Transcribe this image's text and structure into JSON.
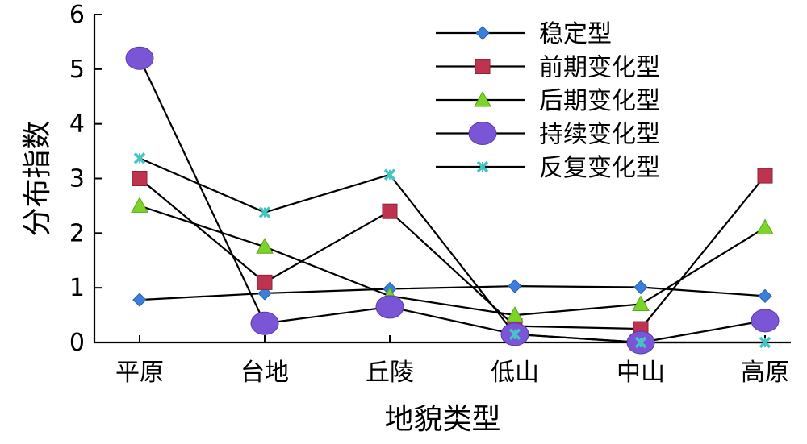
{
  "chart_data": {
    "type": "line",
    "title": "",
    "xlabel": "地貌类型",
    "ylabel": "分布指数",
    "categories": [
      "平原",
      "台地",
      "丘陵",
      "低山",
      "中山",
      "高原"
    ],
    "ylim": [
      0,
      6
    ],
    "yticks": [
      0,
      1,
      2,
      3,
      4,
      5,
      6
    ],
    "grid": false,
    "legend": "top-right",
    "series": [
      {
        "name": "稳定型",
        "marker": "diamond",
        "color": "#3a7fd9",
        "values": [
          0.78,
          0.9,
          0.98,
          1.03,
          1.01,
          0.85
        ]
      },
      {
        "name": "前期变化型",
        "marker": "square",
        "color": "#c0334f",
        "values": [
          3.0,
          1.1,
          2.4,
          0.3,
          0.25,
          3.05
        ]
      },
      {
        "name": "后期变化型",
        "marker": "triangle",
        "color": "#7cd42a",
        "values": [
          2.5,
          1.75,
          0.85,
          0.5,
          0.7,
          2.1
        ]
      },
      {
        "name": "持续变化型",
        "marker": "circle",
        "color": "#7a55d6",
        "values": [
          5.2,
          0.35,
          0.65,
          0.15,
          0.0,
          0.4
        ]
      },
      {
        "name": "反复变化型",
        "marker": "x",
        "color": "#44c5c5",
        "values": [
          3.37,
          2.38,
          3.07,
          0.15,
          0.0,
          0.0
        ]
      }
    ]
  }
}
